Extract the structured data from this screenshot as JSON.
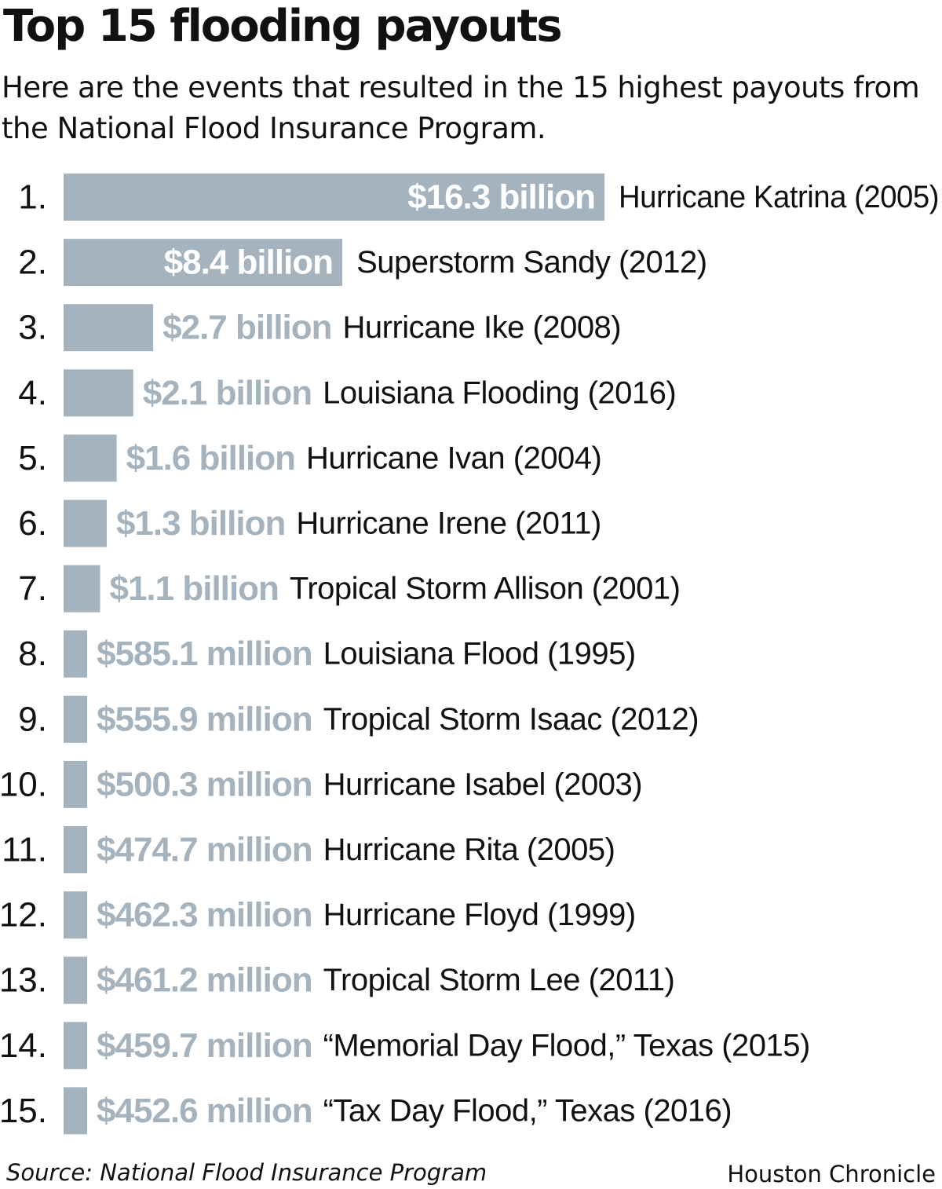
{
  "title": "Top 15 flooding payouts",
  "subtitle": "Here are the events that resulted in the 15 highest payouts from the National Flood Insurance Program.",
  "colors": {
    "bar": "#a4b3bd",
    "value_inside": "#ffffff",
    "value_outside": "#a4b3bd",
    "text": "#111111"
  },
  "chart_data": {
    "type": "bar",
    "orientation": "horizontal",
    "unit": "USD",
    "ranks": [
      "1.",
      "2.",
      "3.",
      "4.",
      "5.",
      "6.",
      "7.",
      "8.",
      "9.",
      "10.",
      "11.",
      "12.",
      "13.",
      "14.",
      "15."
    ],
    "categories": [
      "Hurricane Katrina (2005)",
      "Superstorm Sandy (2012)",
      "Hurricane Ike (2008)",
      "Louisiana Flooding (2016)",
      "Hurricane Ivan (2004)",
      "Hurricane Irene (2011)",
      "Tropical Storm Allison (2001)",
      "Louisiana Flood (1995)",
      "Tropical Storm Isaac (2012)",
      "Hurricane Isabel (2003)",
      "Hurricane Rita (2005)",
      "Hurricane Floyd (1999)",
      "Tropical Storm Lee (2011)",
      "“Memorial Day Flood,” Texas (2015)",
      "“Tax Day Flood,” Texas (2016)"
    ],
    "value_labels": [
      "$16.3 billion",
      "$8.4 billion",
      "$2.7 billion",
      "$2.1 billion",
      "$1.6 billion",
      "$1.3 billion",
      "$1.1 billion",
      "$585.1 million",
      "$555.9 million",
      "$500.3 million",
      "$474.7 million",
      "$462.3 million",
      "$461.2 million",
      "$459.7 million",
      "$452.6 million"
    ],
    "values": [
      16300000000,
      8400000000,
      2700000000,
      2100000000,
      1600000000,
      1300000000,
      1100000000,
      585100000,
      555900000,
      500300000,
      474700000,
      462300000,
      461200000,
      459700000,
      452600000
    ],
    "labels_inside_bar": [
      true,
      true,
      false,
      false,
      false,
      false,
      false,
      false,
      false,
      false,
      false,
      false,
      false,
      false,
      false
    ],
    "grid": false,
    "legend": "none"
  },
  "source": "Source: National Flood Insurance Program",
  "credit": "Houston Chronicle"
}
